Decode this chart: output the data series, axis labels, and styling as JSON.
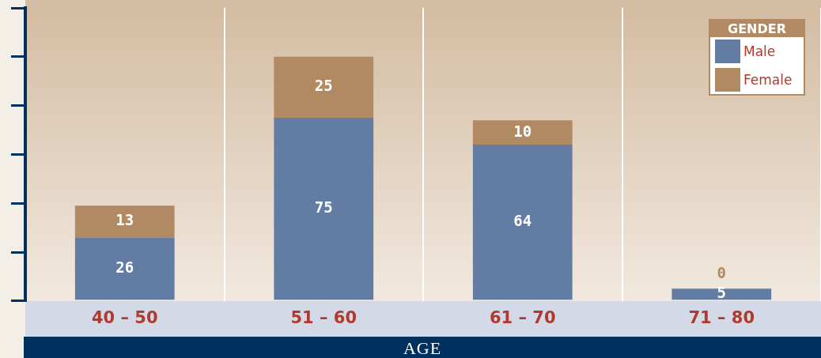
{
  "chart_data": {
    "type": "bar",
    "stacked": true,
    "xlabel": "AGE",
    "legend_title": "GENDER",
    "legend": "top right",
    "grid": "x",
    "tick_labels": "x",
    "data_labels": true,
    "categories": [
      "40 – 50",
      "51 – 60",
      "61 – 70",
      "71 – 80"
    ],
    "series": [
      {
        "name": "Male",
        "color": "#637ca4",
        "values": [
          26,
          75,
          64,
          5
        ]
      },
      {
        "name": "Female",
        "color": "#b18962",
        "values": [
          13,
          25,
          10,
          0
        ]
      }
    ]
  }
}
